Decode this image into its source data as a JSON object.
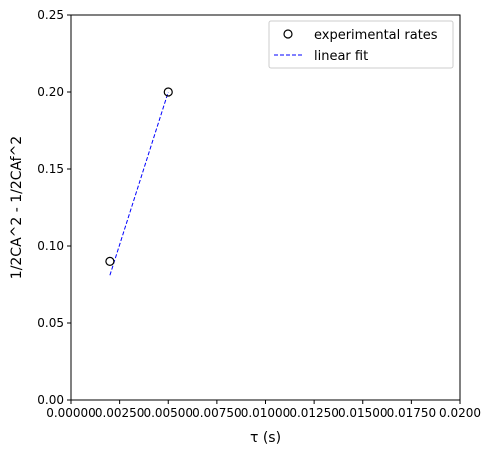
{
  "chart_data": {
    "type": "scatter",
    "xlabel": "τ (s)",
    "ylabel": "1/2CA^2 - 1/2CAf^2",
    "xlim": [
      0,
      0.02
    ],
    "ylim": [
      0,
      0.25
    ],
    "xticks": [
      0,
      0.0025,
      0.005,
      0.0075,
      0.01,
      0.0125,
      0.015,
      0.0175,
      0.02
    ],
    "xtick_labels": [
      "0.00000",
      "0.00250",
      "0.00500",
      "0.00750",
      "0.01000",
      "0.01250",
      "0.01500",
      "0.01750",
      "0.0200"
    ],
    "yticks": [
      0,
      0.05,
      0.1,
      0.15,
      0.2,
      0.25
    ],
    "ytick_labels": [
      "0.00",
      "0.05",
      "0.10",
      "0.15",
      "0.20",
      "0.25"
    ],
    "grid": false,
    "legend_position": "top-right",
    "series": [
      {
        "name": "experimental rates",
        "kind": "scatter",
        "marker": "open-circle",
        "color": "#000000",
        "x": [
          0.002,
          0.005
        ],
        "y": [
          0.09,
          0.2
        ]
      },
      {
        "name": "linear fit",
        "kind": "line",
        "style": "dashed",
        "color": "#0000ff",
        "x": [
          0.002,
          0.005
        ],
        "y": [
          0.081,
          0.2
        ]
      }
    ]
  }
}
